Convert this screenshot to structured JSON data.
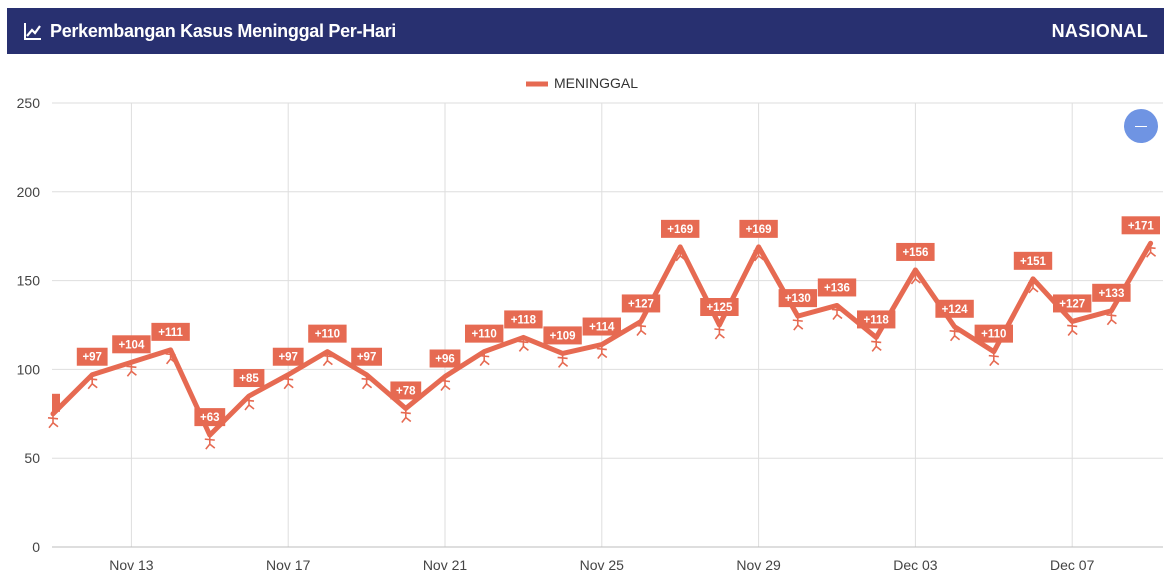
{
  "header": {
    "title": "Perkembangan Kasus Meninggal Per-Hari",
    "scope": "NASIONAL",
    "icon": "line-chart-icon"
  },
  "zoom_button": {
    "icon": "minus-icon"
  },
  "colors": {
    "header_bg": "#283070",
    "series": "#e66a52",
    "zoom_button": "#6f94e3"
  },
  "chart_data": {
    "type": "line",
    "title": "",
    "xlabel": "",
    "ylabel": "",
    "ylim": [
      0,
      250
    ],
    "yticks": [
      0,
      50,
      100,
      150,
      200,
      250
    ],
    "xtick_labels": [
      "Nov 13",
      "Nov 17",
      "Nov 21",
      "Nov 25",
      "Nov 29",
      "Dec 03",
      "Dec 07"
    ],
    "grid": true,
    "legend_position": "top-center",
    "series": [
      {
        "name": "MENINGGAL",
        "x": [
          "Nov 11",
          "Nov 12",
          "Nov 13",
          "Nov 14",
          "Nov 15",
          "Nov 16",
          "Nov 17",
          "Nov 18",
          "Nov 19",
          "Nov 20",
          "Nov 21",
          "Nov 22",
          "Nov 23",
          "Nov 24",
          "Nov 25",
          "Nov 26",
          "Nov 27",
          "Nov 28",
          "Nov 29",
          "Nov 30",
          "Dec 01",
          "Dec 02",
          "Dec 03",
          "Dec 04",
          "Dec 05",
          "Dec 06",
          "Dec 07",
          "Dec 08",
          "Dec 09"
        ],
        "values": [
          75,
          97,
          104,
          111,
          63,
          85,
          97,
          110,
          97,
          78,
          96,
          110,
          118,
          109,
          114,
          127,
          169,
          125,
          169,
          130,
          136,
          118,
          156,
          124,
          110,
          151,
          127,
          133,
          171
        ],
        "labels": [
          "",
          "+97",
          "+104",
          "+111",
          "+63",
          "+85",
          "+97",
          "+110",
          "+97",
          "+78",
          "+96",
          "+110",
          "+118",
          "+109",
          "+114",
          "+127",
          "+169",
          "+125",
          "+169",
          "+130",
          "+136",
          "+118",
          "+156",
          "+124",
          "+110",
          "+151",
          "+127",
          "+133",
          "+171"
        ]
      }
    ]
  }
}
